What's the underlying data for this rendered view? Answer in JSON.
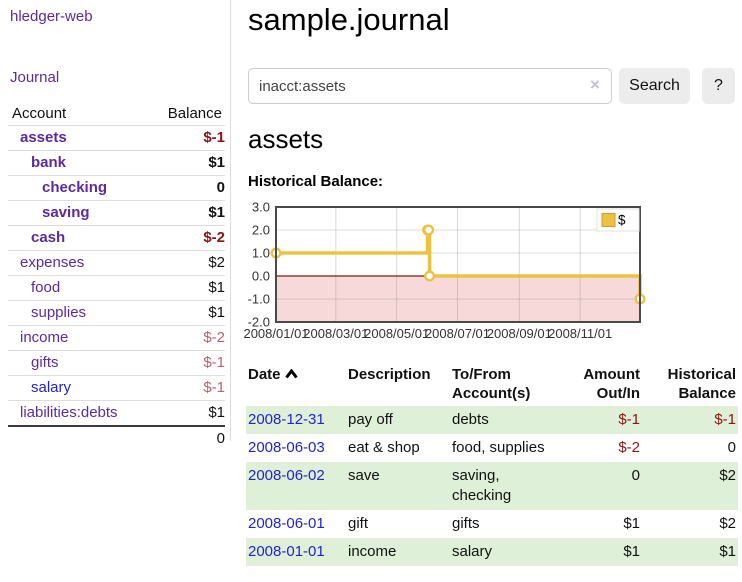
{
  "sidebar": {
    "brand": "hledger-web",
    "journal_link": "Journal",
    "accounts_table": {
      "headers": {
        "account": "Account",
        "balance": "Balance"
      },
      "rows": [
        {
          "name": "assets",
          "depth": 1,
          "bold": true,
          "link_color": "purple",
          "balance": "$-1",
          "balance_style": "neg-strong"
        },
        {
          "name": "bank",
          "depth": 2,
          "bold": true,
          "link_color": "purple",
          "balance": "$1",
          "balance_style": "plain"
        },
        {
          "name": "checking",
          "depth": 3,
          "bold": true,
          "link_color": "purple",
          "balance": "0",
          "balance_style": "plain"
        },
        {
          "name": "saving",
          "depth": 3,
          "bold": true,
          "link_color": "purple",
          "balance": "$1",
          "balance_style": "plain"
        },
        {
          "name": "cash",
          "depth": 2,
          "bold": true,
          "link_color": "purple",
          "balance": "$-2",
          "balance_style": "neg-strong"
        },
        {
          "name": "expenses",
          "depth": 1,
          "bold": false,
          "link_color": "purple",
          "balance": "$2",
          "balance_style": "plain"
        },
        {
          "name": "food",
          "depth": 2,
          "bold": false,
          "link_color": "purple",
          "balance": "$1",
          "balance_style": "plain"
        },
        {
          "name": "supplies",
          "depth": 2,
          "bold": false,
          "link_color": "purple",
          "balance": "$1",
          "balance_style": "plain"
        },
        {
          "name": "income",
          "depth": 1,
          "bold": false,
          "link_color": "purple",
          "balance": "$-2",
          "balance_style": "neg-muted"
        },
        {
          "name": "gifts",
          "depth": 2,
          "bold": false,
          "link_color": "purple",
          "balance": "$-1",
          "balance_style": "neg-muted"
        },
        {
          "name": "salary",
          "depth": 2,
          "bold": false,
          "link_color": "blue",
          "balance": "$-1",
          "balance_style": "neg-muted"
        },
        {
          "name": "liabilities:debts",
          "depth": 1,
          "bold": false,
          "link_color": "purple",
          "balance": "$1",
          "balance_style": "plain"
        }
      ],
      "total": "0"
    }
  },
  "header": {
    "title": "sample.journal"
  },
  "search": {
    "value": "inacct:assets",
    "clear_icon": "×",
    "button_label": "Search",
    "help_label": "?"
  },
  "account_page": {
    "heading": "assets",
    "chart_title": "Historical Balance:"
  },
  "chart_data": {
    "type": "line",
    "step": true,
    "x_start": "2008-01-01",
    "x_end": "2008-12-31",
    "series": [
      {
        "name": "$",
        "color": "#EDC240",
        "points": [
          [
            "2008-01-01",
            1
          ],
          [
            "2008-06-01",
            2
          ],
          [
            "2008-06-02",
            2
          ],
          [
            "2008-06-03",
            0
          ],
          [
            "2008-12-31",
            -1
          ]
        ]
      }
    ],
    "ylim": [
      -2,
      3
    ],
    "yticks": [
      3.0,
      2.0,
      1.0,
      0.0,
      -1.0,
      -2.0
    ],
    "xticks": [
      {
        "label": "2008/01/01",
        "date": "2008-01-01"
      },
      {
        "label": "2008/03/01",
        "date": "2008-03-01"
      },
      {
        "label": "2008/05/01",
        "date": "2008-05-01"
      },
      {
        "label": "2008/07/01",
        "date": "2008-07-01"
      },
      {
        "label": "2008/09/01",
        "date": "2008-09-01"
      },
      {
        "label": "2008/11/01",
        "date": "2008-11-01"
      }
    ],
    "legend": {
      "label": "$",
      "position": "top-right"
    },
    "grid": true,
    "negative_region_fill": "#f8d9d9",
    "zero_line_color": "#7a1a1a",
    "border_color": "#4a4a4a"
  },
  "transactions": {
    "headers": [
      {
        "label": "Date",
        "align": "left",
        "sorted_asc": true
      },
      {
        "label": "Description",
        "align": "left"
      },
      {
        "label": "To/From Account(s)",
        "align": "left"
      },
      {
        "label": "Amount Out/In",
        "align": "right"
      },
      {
        "label": "Historical Balance",
        "align": "right"
      }
    ],
    "rows": [
      {
        "date": "2008-12-31",
        "description": "pay off",
        "accounts": "debts",
        "amount": "$-1",
        "amount_neg": true,
        "balance": "$-1",
        "balance_neg": true,
        "stripe": true
      },
      {
        "date": "2008-06-03",
        "description": "eat & shop",
        "accounts": "food, supplies",
        "amount": "$-2",
        "amount_neg": true,
        "balance": "0",
        "balance_neg": false,
        "stripe": false
      },
      {
        "date": "2008-06-02",
        "description": "save",
        "accounts": "saving, checking",
        "amount": "0",
        "amount_neg": false,
        "balance": "$2",
        "balance_neg": false,
        "stripe": true
      },
      {
        "date": "2008-06-01",
        "description": "gift",
        "accounts": "gifts",
        "amount": "$1",
        "amount_neg": false,
        "balance": "$2",
        "balance_neg": false,
        "stripe": false
      },
      {
        "date": "2008-01-01",
        "description": "income",
        "accounts": "salary",
        "amount": "$1",
        "amount_neg": false,
        "balance": "$1",
        "balance_neg": false,
        "stripe": true
      }
    ]
  },
  "colors": {
    "link_purple": "#5b2aa1",
    "link_blue": "#2222d5",
    "negative_strong": "#8e1313",
    "negative_muted": "#b5636e",
    "row_stripe_green": "#dff0d8",
    "series_gold": "#EDC240"
  }
}
